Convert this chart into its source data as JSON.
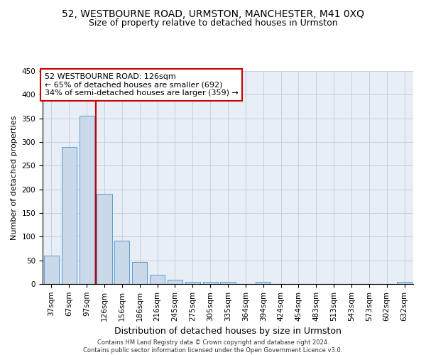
{
  "title": "52, WESTBOURNE ROAD, URMSTON, MANCHESTER, M41 0XQ",
  "subtitle": "Size of property relative to detached houses in Urmston",
  "xlabel": "Distribution of detached houses by size in Urmston",
  "ylabel": "Number of detached properties",
  "bar_labels": [
    "37sqm",
    "67sqm",
    "97sqm",
    "126sqm",
    "156sqm",
    "186sqm",
    "216sqm",
    "245sqm",
    "275sqm",
    "305sqm",
    "335sqm",
    "364sqm",
    "394sqm",
    "424sqm",
    "454sqm",
    "483sqm",
    "513sqm",
    "543sqm",
    "573sqm",
    "602sqm",
    "632sqm"
  ],
  "bar_values": [
    60,
    290,
    355,
    190,
    92,
    47,
    20,
    9,
    5,
    5,
    5,
    0,
    5,
    0,
    0,
    0,
    0,
    0,
    0,
    0,
    5
  ],
  "bar_color": "#c9d9ea",
  "bar_edge_color": "#5b9bd5",
  "vline_index": 3,
  "vline_color": "#cc0000",
  "annotation_text": "52 WESTBOURNE ROAD: 126sqm\n← 65% of detached houses are smaller (692)\n34% of semi-detached houses are larger (359) →",
  "annotation_box_color": "#ffffff",
  "annotation_box_edge": "#cc0000",
  "ylim": [
    0,
    450
  ],
  "yticks": [
    0,
    50,
    100,
    150,
    200,
    250,
    300,
    350,
    400,
    450
  ],
  "bg_color": "#e8eef5",
  "grid_color": "#c8d0dc",
  "footer": "Contains HM Land Registry data © Crown copyright and database right 2024.\nContains public sector information licensed under the Open Government Licence v3.0.",
  "title_fontsize": 10,
  "subtitle_fontsize": 9,
  "ylabel_fontsize": 8,
  "xlabel_fontsize": 9,
  "tick_fontsize": 7.5,
  "footer_fontsize": 6,
  "ann_fontsize": 8
}
